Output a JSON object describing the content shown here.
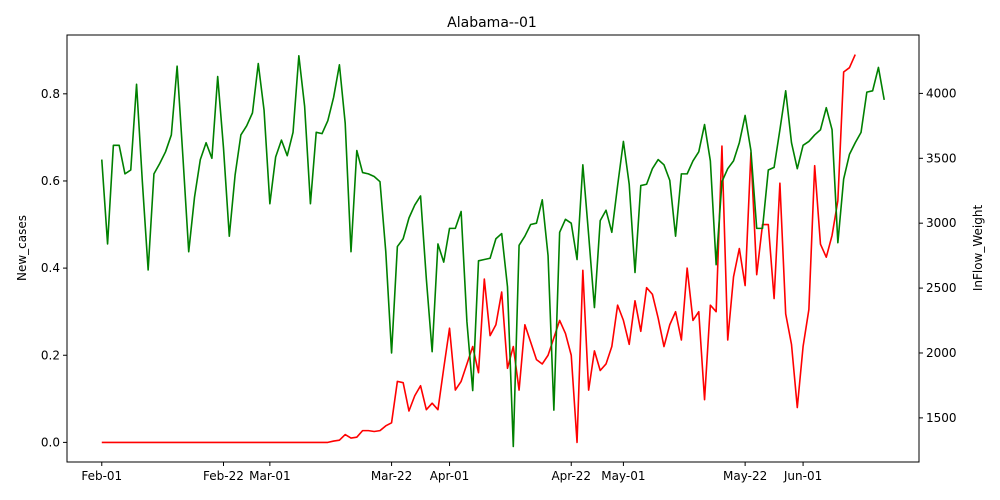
{
  "chart_data": {
    "type": "line",
    "title": "Alabama--01",
    "ylabel": "New_cases",
    "y2label": "InFlow_Weight",
    "grid": false,
    "legend": "none",
    "xlim": [
      "2020-01-26",
      "2020-06-21"
    ],
    "ylim": [
      -0.045,
      0.935
    ],
    "y2lim": [
      1160,
      4450
    ],
    "x_ticks": [
      "2020-02-01",
      "2020-02-22",
      "2020-03-01",
      "2020-03-22",
      "2020-04-01",
      "2020-04-22",
      "2020-05-01",
      "2020-05-22",
      "2020-06-01"
    ],
    "x_tick_labels": [
      "Feb-01",
      "Feb-22",
      "Mar-01",
      "Mar-22",
      "Apr-01",
      "Apr-22",
      "May-01",
      "May-22",
      "Jun-01"
    ],
    "y_ticks": [
      "0.0",
      "0.2",
      "0.4",
      "0.6",
      "0.8"
    ],
    "y2_ticks": [
      "1500",
      "2000",
      "2500",
      "3000",
      "3500",
      "4000"
    ],
    "start_date": "2020-02-01",
    "series": [
      {
        "axis": "left",
        "color": "#ff0000",
        "values": [
          0,
          0,
          0,
          0,
          0,
          0,
          0,
          0,
          0,
          0,
          0,
          0,
          0,
          0,
          0,
          0,
          0,
          0,
          0,
          0,
          0,
          0,
          0,
          0,
          0,
          0,
          0,
          0,
          0,
          0,
          0,
          0,
          0,
          0,
          0,
          0,
          0,
          0,
          0,
          0,
          0.003,
          0.005,
          0.018,
          0.01,
          0.012,
          0.027,
          0.027,
          0.025,
          0.027,
          0.038,
          0.045,
          0.14,
          0.137,
          0.072,
          0.107,
          0.13,
          0.075,
          0.09,
          0.075,
          0.17,
          0.262,
          0.12,
          0.14,
          0.18,
          0.22,
          0.16,
          0.375,
          0.245,
          0.27,
          0.345,
          0.17,
          0.22,
          0.12,
          0.27,
          0.23,
          0.19,
          0.18,
          0.2,
          0.24,
          0.28,
          0.25,
          0.2,
          0,
          0.395,
          0.12,
          0.21,
          0.165,
          0.18,
          0.22,
          0.315,
          0.28,
          0.225,
          0.325,
          0.255,
          0.355,
          0.34,
          0.285,
          0.22,
          0.27,
          0.3,
          0.235,
          0.4,
          0.28,
          0.3,
          0.098,
          0.315,
          0.3,
          0.68,
          0.235,
          0.38,
          0.445,
          0.36,
          0.665,
          0.385,
          0.5,
          0.5,
          0.33,
          0.595,
          0.295,
          0.225,
          0.08,
          0.22,
          0.305,
          0.635,
          0.455,
          0.425,
          0.475,
          0.555,
          0.85,
          0.86,
          0.89
        ]
      },
      {
        "axis": "right",
        "color": "#008000",
        "values": [
          3490,
          2840,
          3600,
          3600,
          3380,
          3410,
          4070,
          3320,
          2640,
          3380,
          3460,
          3550,
          3680,
          4210,
          3510,
          2780,
          3200,
          3490,
          3620,
          3500,
          4130,
          3580,
          2900,
          3370,
          3680,
          3750,
          3850,
          4230,
          3870,
          3150,
          3510,
          3640,
          3520,
          3700,
          4290,
          3900,
          3150,
          3700,
          3690,
          3790,
          3970,
          4220,
          3770,
          2780,
          3560,
          3390,
          3380,
          3360,
          3320,
          2780,
          2000,
          2820,
          2880,
          3040,
          3140,
          3210,
          2570,
          2010,
          2840,
          2700,
          2960,
          2960,
          3090,
          2240,
          1710,
          2710,
          2720,
          2730,
          2880,
          2920,
          2510,
          1280,
          2830,
          2900,
          2990,
          3000,
          3180,
          2750,
          1560,
          2930,
          3030,
          3000,
          2720,
          3450,
          2910,
          2350,
          3020,
          3100,
          2930,
          3290,
          3630,
          3300,
          2620,
          3290,
          3300,
          3420,
          3490,
          3450,
          3330,
          2900,
          3380,
          3380,
          3480,
          3550,
          3760,
          3480,
          2680,
          3320,
          3420,
          3480,
          3620,
          3830,
          3560,
          2960,
          2960,
          3410,
          3430,
          3720,
          4020,
          3620,
          3420,
          3600,
          3630,
          3680,
          3720,
          3890,
          3720,
          2850,
          3340,
          3530,
          3620,
          3700,
          4010,
          4020,
          4200,
          3950
        ]
      }
    ]
  }
}
